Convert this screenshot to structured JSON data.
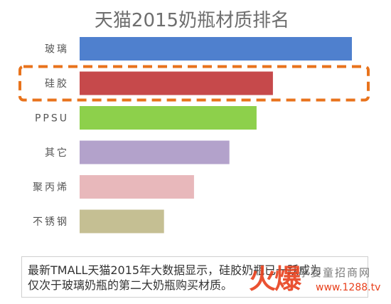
{
  "chart_data": {
    "type": "bar",
    "orientation": "horizontal",
    "title": "天猫2015奶瓶材质排名",
    "categories": [
      "玻璃",
      "硅胶",
      "PPSU",
      "其它",
      "聚丙烯",
      "不锈钢"
    ],
    "values": [
      100,
      71,
      65,
      55,
      42,
      31
    ],
    "colors": [
      "#4f80ce",
      "#c6494b",
      "#8dd04b",
      "#b3a2cb",
      "#e8b8bb",
      "#c5bf93"
    ],
    "grid": false,
    "legend": "none"
  },
  "highlight": {
    "category": "硅胶",
    "style": "dashed-box",
    "color": "#e8731c"
  },
  "caption": {
    "line1": "最新TMALL天猫2015年大数据显示，硅胶奶瓶已一跃成为",
    "line2": "仅次于玻璃奶瓶的第二大奶瓶购买材质。"
  },
  "watermark": {
    "logo": "火爆",
    "name": "孕婴童招商网",
    "url": "www.1288.tv"
  }
}
